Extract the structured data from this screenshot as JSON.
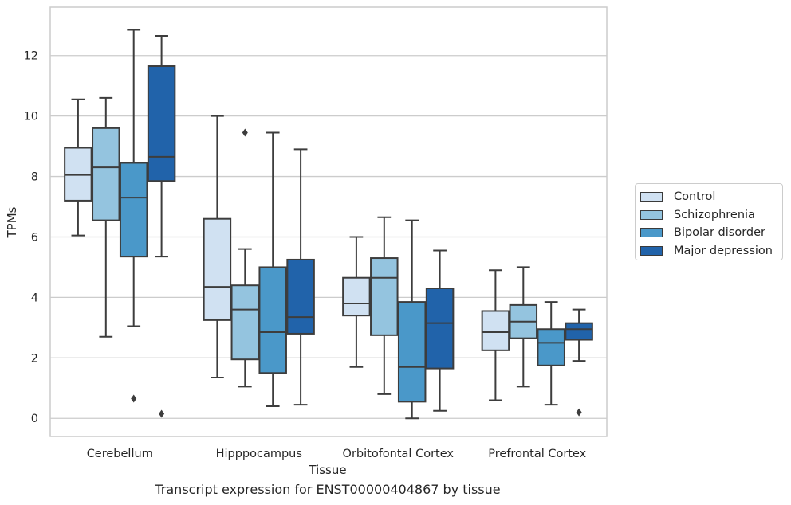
{
  "chart_data": {
    "type": "boxplot",
    "xlabel": "Tissue",
    "ylabel": "TPMs",
    "ylim": [
      -0.6,
      13.6
    ],
    "yticks": [
      0,
      2,
      4,
      6,
      8,
      10,
      12
    ],
    "grid": "horizontal",
    "legend_position": "right",
    "categories": [
      "Cerebellum",
      "Hipppocampus",
      "Orbitofontal Cortex",
      "Prefrontal Cortex"
    ],
    "series": [
      {
        "name": "Control",
        "color": "#d0e1f2",
        "boxes": [
          {
            "whislo": 6.05,
            "q1": 7.2,
            "med": 8.05,
            "q3": 8.95,
            "whishi": 10.55,
            "fliers": []
          },
          {
            "whislo": 1.35,
            "q1": 3.25,
            "med": 4.35,
            "q3": 6.6,
            "whishi": 10.0,
            "fliers": []
          },
          {
            "whislo": 1.7,
            "q1": 3.4,
            "med": 3.8,
            "q3": 4.65,
            "whishi": 6.0,
            "fliers": []
          },
          {
            "whislo": 0.6,
            "q1": 2.25,
            "med": 2.85,
            "q3": 3.55,
            "whishi": 4.9,
            "fliers": []
          }
        ]
      },
      {
        "name": "Schizophrenia",
        "color": "#94c4df",
        "boxes": [
          {
            "whislo": 2.7,
            "q1": 6.55,
            "med": 8.3,
            "q3": 9.6,
            "whishi": 10.6,
            "fliers": []
          },
          {
            "whislo": 1.05,
            "q1": 1.95,
            "med": 3.6,
            "q3": 4.4,
            "whishi": 5.6,
            "fliers": [
              9.45
            ]
          },
          {
            "whislo": 0.8,
            "q1": 2.75,
            "med": 4.65,
            "q3": 5.3,
            "whishi": 6.65,
            "fliers": []
          },
          {
            "whislo": 1.05,
            "q1": 2.65,
            "med": 3.2,
            "q3": 3.75,
            "whishi": 5.0,
            "fliers": []
          }
        ]
      },
      {
        "name": "Bipolar disorder",
        "color": "#4a98c9",
        "boxes": [
          {
            "whislo": 3.05,
            "q1": 5.35,
            "med": 7.3,
            "q3": 8.45,
            "whishi": 12.85,
            "fliers": [
              0.65
            ]
          },
          {
            "whislo": 0.4,
            "q1": 1.5,
            "med": 2.85,
            "q3": 5.0,
            "whishi": 9.45,
            "fliers": []
          },
          {
            "whislo": 0.0,
            "q1": 0.55,
            "med": 1.7,
            "q3": 3.85,
            "whishi": 6.55,
            "fliers": []
          },
          {
            "whislo": 0.45,
            "q1": 1.75,
            "med": 2.5,
            "q3": 2.95,
            "whishi": 3.85,
            "fliers": []
          }
        ]
      },
      {
        "name": "Major depression",
        "color": "#2163aa",
        "boxes": [
          {
            "whislo": 5.35,
            "q1": 7.85,
            "med": 8.65,
            "q3": 11.65,
            "whishi": 12.65,
            "fliers": [
              0.15
            ]
          },
          {
            "whislo": 0.45,
            "q1": 2.8,
            "med": 3.35,
            "q3": 5.25,
            "whishi": 8.9,
            "fliers": []
          },
          {
            "whislo": 0.25,
            "q1": 1.65,
            "med": 3.15,
            "q3": 4.3,
            "whishi": 5.55,
            "fliers": []
          },
          {
            "whislo": 1.9,
            "q1": 2.6,
            "med": 2.95,
            "q3": 3.15,
            "whishi": 3.6,
            "fliers": [
              0.2
            ]
          }
        ]
      }
    ]
  },
  "caption": "Transcript expression for ENST00000404867 by tissue"
}
